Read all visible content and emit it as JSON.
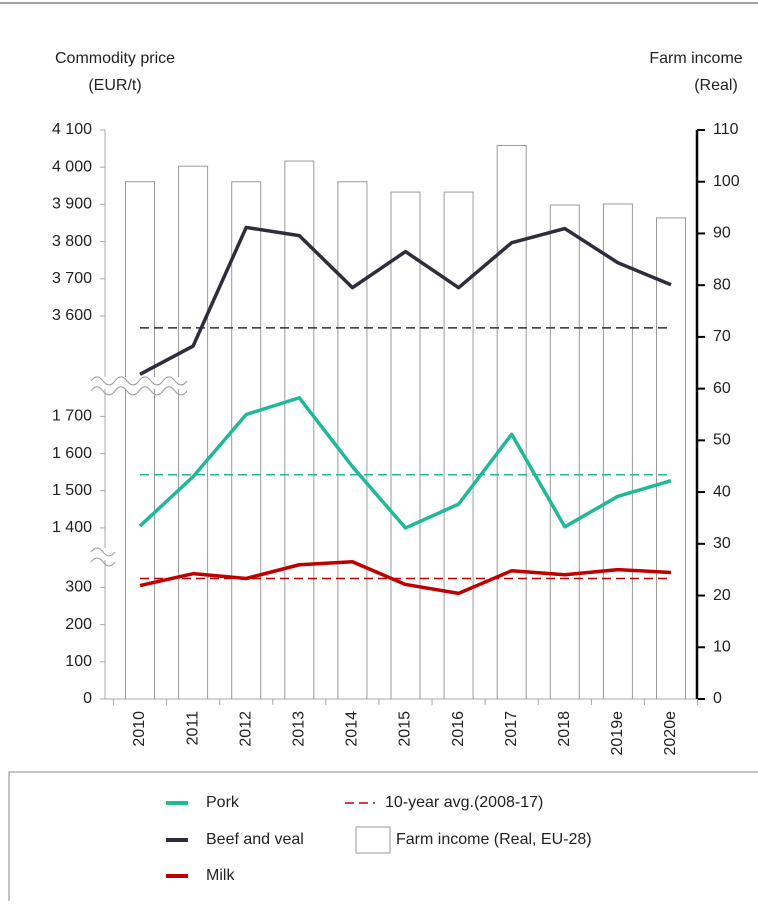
{
  "chart_data": {
    "type": "bar_line_broken",
    "y_label": [
      "Commodity price",
      "(EUR/t)"
    ],
    "y2_label": [
      "Farm income",
      "(Real)"
    ],
    "categories": [
      "2010",
      "2011",
      "2012",
      "2013",
      "2014",
      "2015",
      "2016",
      "2017",
      "2018",
      "2019e",
      "2020e"
    ],
    "y_segments": [
      {
        "ylim": [
          0,
          390
        ],
        "yticks": [
          0,
          100,
          200,
          300
        ]
      },
      {
        "ylim": [
          1330,
          1790
        ],
        "yticks": [
          {
            "value": 1400,
            "label": "1 400"
          },
          {
            "value": 1500,
            "label": "1 500"
          },
          {
            "value": 1600,
            "label": "1 600"
          },
          {
            "value": 1700,
            "label": "1 700"
          }
        ]
      },
      {
        "ylim": [
          3420,
          4100
        ],
        "yticks": [
          {
            "value": 3600,
            "label": "3 600"
          },
          {
            "value": 3700,
            "label": "3 700"
          },
          {
            "value": 3800,
            "label": "3 800"
          },
          {
            "value": 3900,
            "label": "3 900"
          },
          {
            "value": 4000,
            "label": "4 000"
          },
          {
            "value": 4100,
            "label": "4 100"
          }
        ]
      }
    ],
    "y2lim": [
      0,
      110
    ],
    "y2ticks": [
      0,
      10,
      20,
      30,
      40,
      50,
      60,
      70,
      80,
      90,
      100,
      110
    ],
    "average_label": "10-year avg.(2008-17)",
    "series": [
      {
        "name": "Pork",
        "type": "line",
        "segment": 1,
        "color": "#1fb998",
        "values": [
          1405,
          1538,
          1705,
          1750,
          1565,
          1400,
          1464,
          1652,
          1403,
          1485,
          1527
        ],
        "average": 1543
      },
      {
        "name": "Beef and veal",
        "type": "line",
        "segment": 2,
        "color": "#2d2e3a",
        "values": [
          3443,
          3519,
          3838,
          3816,
          3676,
          3773,
          3676,
          3797,
          3835,
          3743,
          3684
        ],
        "average": 3568
      },
      {
        "name": "Milk",
        "type": "line",
        "segment": 0,
        "color": "#c00000",
        "values": [
          305,
          337,
          324,
          361,
          369,
          308,
          284,
          345,
          334,
          348,
          340
        ],
        "average": 324
      },
      {
        "name": "Farm income (Real, EU-28)",
        "type": "bar",
        "axis": "y2",
        "color": "#ffffff",
        "values": [
          100,
          103,
          100,
          104,
          100,
          98,
          98,
          107,
          95.5,
          95.7,
          93
        ]
      }
    ]
  }
}
